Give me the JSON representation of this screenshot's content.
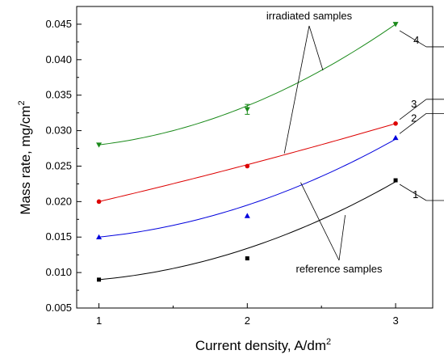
{
  "chart_data": {
    "type": "scatter",
    "xlabel": "Current density, A/dm",
    "xlabel_sup": "2",
    "ylabel": "Mass rate, mg/cm",
    "ylabel_sup": "2",
    "xlim": [
      0.85,
      3.25
    ],
    "ylim": [
      0.005,
      0.0475
    ],
    "xticks": [
      1,
      2,
      3
    ],
    "yticks": [
      0.005,
      0.01,
      0.015,
      0.02,
      0.025,
      0.03,
      0.035,
      0.04,
      0.045
    ],
    "ytick_labels": [
      "0.005",
      "0.010",
      "0.015",
      "0.020",
      "0.025",
      "0.030",
      "0.035",
      "0.040",
      "0.045"
    ],
    "xtick_labels": [
      "1",
      "2",
      "3"
    ],
    "grid": false,
    "legend": "none",
    "series": [
      {
        "label": "1",
        "marker": "square",
        "color": "#000000",
        "x": [
          1,
          2,
          3
        ],
        "y": [
          0.009,
          0.012,
          0.023
        ],
        "fit": [
          0.009,
          0.0134,
          0.0228
        ]
      },
      {
        "label": "2",
        "marker": "triangle-up",
        "color": "#0000dd",
        "x": [
          1,
          2,
          3
        ],
        "y": [
          0.015,
          0.018,
          0.029
        ],
        "fit": [
          0.015,
          0.0195,
          0.0288
        ]
      },
      {
        "label": "3",
        "marker": "circle",
        "color": "#dd0000",
        "x": [
          1,
          2,
          3
        ],
        "y": [
          0.02,
          0.025,
          0.031
        ],
        "fit": [
          0.02,
          0.0252,
          0.031
        ]
      },
      {
        "label": "4",
        "marker": "triangle-down",
        "color": "#1a8a1a",
        "x": [
          1,
          2,
          3
        ],
        "y": [
          0.028,
          0.033,
          0.045
        ],
        "yerr": [
          0,
          0.0007,
          0
        ],
        "fit": [
          0.028,
          0.0335,
          0.045
        ]
      }
    ],
    "annotations": {
      "irradiated": "irradiated samples",
      "reference": "reference samples"
    }
  }
}
